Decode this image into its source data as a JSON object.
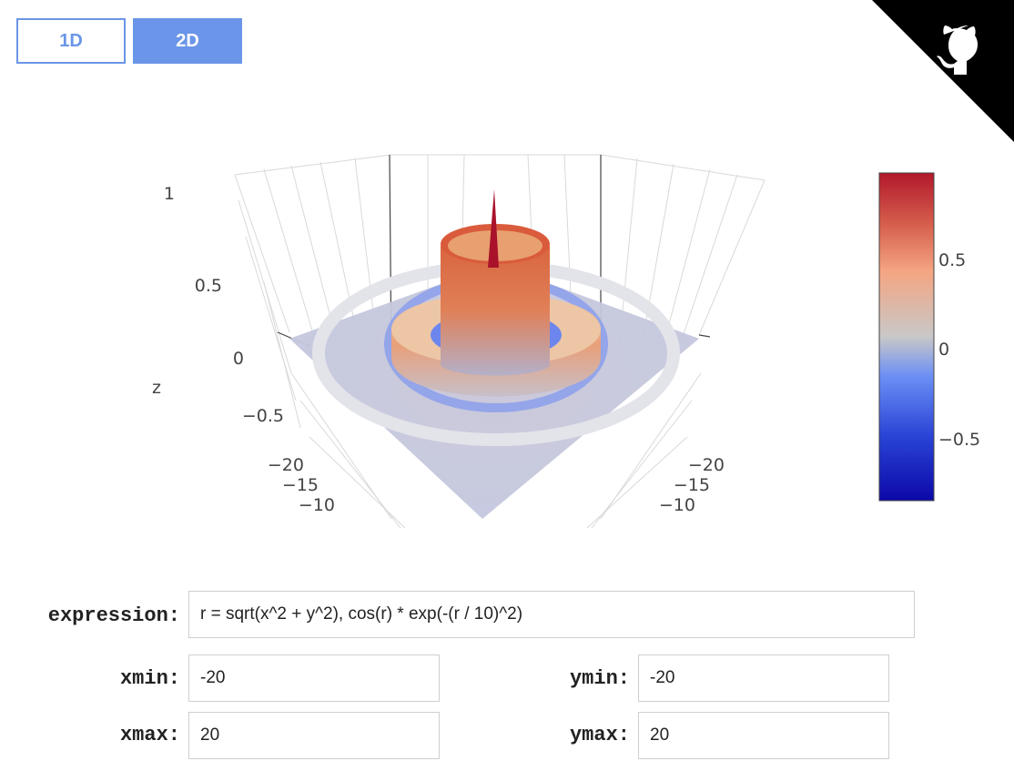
{
  "mode_buttons": {
    "one_d": "1D",
    "two_d": "2D",
    "active": "2D"
  },
  "icons": {
    "corner": "github-octocat-icon"
  },
  "chart_data": {
    "type": "surface",
    "title": "",
    "zlabel": "z",
    "z_ticks": [
      "1",
      "0.5",
      "0",
      "−0.5"
    ],
    "x_ticks": [
      "−20",
      "−15",
      "−10"
    ],
    "y_ticks": [
      "−20",
      "−15",
      "−10"
    ],
    "colorbar": {
      "ticks": [
        "0.5",
        "0",
        "−0.5"
      ],
      "colors": [
        "#b2182b",
        "#d6604d",
        "#f4a582",
        "#c8c8c8",
        "#92c5de",
        "#4393c3",
        "#1e3cd6",
        "#0c08a8"
      ]
    }
  },
  "form": {
    "expression_label": "expression:",
    "expression_value": "r = sqrt(x^2 + y^2), cos(r) * exp(-(r / 10)^2)",
    "xmin_label": "xmin:",
    "xmin_value": "-20",
    "xmax_label": "xmax:",
    "xmax_value": "20",
    "ymin_label": "ymin:",
    "ymin_value": "-20",
    "ymax_label": "ymax:",
    "ymax_value": "20"
  }
}
